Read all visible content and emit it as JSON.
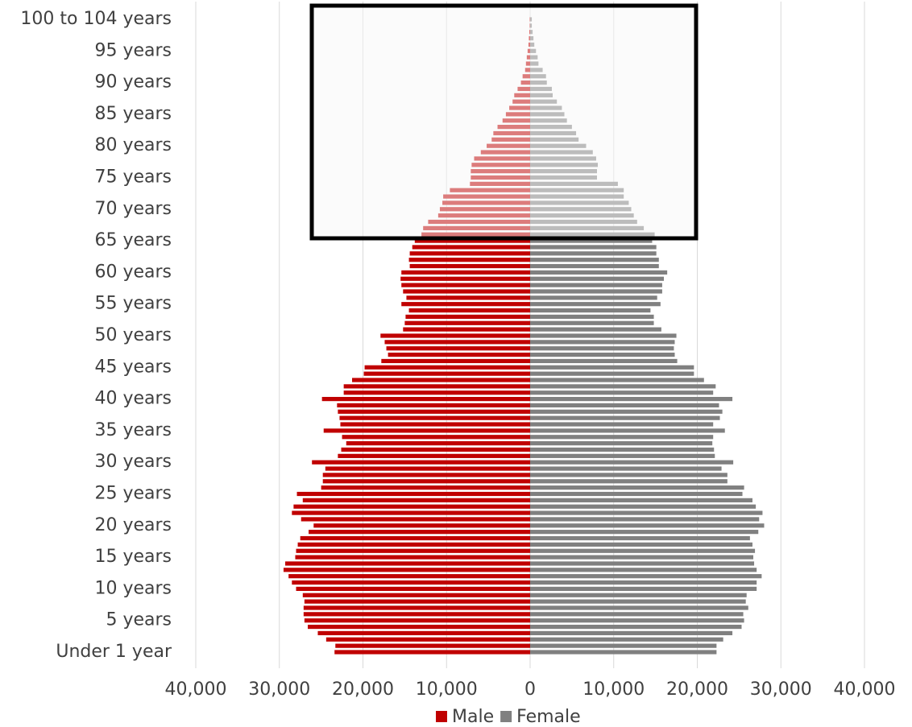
{
  "chart_data": {
    "type": "pyramid",
    "categories": [
      "Under 1 year",
      null,
      null,
      null,
      null,
      "5 years",
      null,
      null,
      null,
      null,
      "10 years",
      null,
      null,
      null,
      null,
      "15 years",
      null,
      null,
      null,
      null,
      "20 years",
      null,
      null,
      null,
      null,
      "25 years",
      null,
      null,
      null,
      null,
      "30 years",
      null,
      null,
      null,
      null,
      "35 years",
      null,
      null,
      null,
      null,
      "40 years",
      null,
      null,
      null,
      null,
      "45 years",
      null,
      null,
      null,
      null,
      "50 years",
      null,
      null,
      null,
      null,
      "55 years",
      null,
      null,
      null,
      null,
      "60 years",
      null,
      null,
      null,
      null,
      "65 years",
      null,
      null,
      null,
      null,
      "70 years",
      null,
      null,
      null,
      null,
      "75 years",
      null,
      null,
      null,
      null,
      "80 years",
      null,
      null,
      null,
      null,
      "85 years",
      null,
      null,
      null,
      null,
      "90 years",
      null,
      null,
      null,
      null,
      "95 years",
      null,
      null,
      null,
      null,
      "100 to 104 years"
    ],
    "series": [
      {
        "name": "Male",
        "color": "#c00000",
        "values": [
          -23400,
          -23300,
          -24400,
          -25400,
          -26600,
          -27000,
          -27100,
          -27100,
          -27000,
          -27200,
          -28000,
          -28500,
          -28900,
          -29500,
          -29300,
          -28100,
          -28000,
          -27800,
          -27500,
          -26500,
          -25900,
          -27400,
          -28500,
          -28300,
          -27200,
          -27900,
          -25000,
          -24800,
          -24800,
          -24500,
          -26100,
          -23000,
          -22600,
          -22000,
          -22500,
          -24700,
          -22700,
          -22800,
          -23000,
          -23100,
          -24900,
          -22300,
          -22300,
          -21300,
          -19900,
          -19800,
          -17800,
          -17000,
          -17200,
          -17400,
          -17900,
          -15200,
          -15000,
          -14900,
          -14500,
          -15400,
          -14800,
          -15200,
          -15400,
          -15500,
          -15400,
          -14400,
          -14500,
          -14400,
          -14100,
          -13800,
          -13000,
          -12800,
          -12200,
          -11000,
          -10800,
          -10500,
          -10400,
          -9600,
          -7200,
          -7100,
          -7100,
          -7000,
          -6700,
          -5900,
          -5200,
          -4600,
          -4400,
          -3900,
          -3300,
          -2900,
          -2500,
          -2100,
          -1900,
          -1500,
          -1100,
          -900,
          -600,
          -500,
          -400,
          -300,
          -200,
          -150,
          -100,
          -50,
          -50
        ]
      },
      {
        "name": "Female",
        "color": "#808080",
        "values": [
          22300,
          22300,
          23100,
          24200,
          25300,
          25600,
          25500,
          26100,
          25800,
          25900,
          27100,
          27100,
          27700,
          27100,
          26800,
          26700,
          26900,
          26600,
          26300,
          27300,
          28000,
          27400,
          27800,
          27000,
          26600,
          25400,
          25600,
          23600,
          23600,
          22900,
          24300,
          22100,
          22000,
          21800,
          21900,
          23300,
          21900,
          22700,
          23000,
          22600,
          24200,
          21900,
          22200,
          20800,
          19600,
          19600,
          17600,
          17300,
          17200,
          17300,
          17500,
          15700,
          14800,
          14800,
          14400,
          15600,
          15200,
          15800,
          15800,
          16000,
          16400,
          15400,
          15400,
          15100,
          15100,
          14600,
          14900,
          13600,
          12800,
          12400,
          12100,
          11800,
          11200,
          11200,
          10500,
          8000,
          8000,
          8100,
          7900,
          7500,
          6700,
          5800,
          5500,
          5000,
          4400,
          4100,
          3800,
          3200,
          2700,
          2600,
          2000,
          1900,
          1500,
          1000,
          900,
          700,
          500,
          400,
          300,
          200,
          200
        ]
      }
    ],
    "xlim": [
      -40000,
      40000
    ],
    "xticks": [
      {
        "value": -40000,
        "label": "40,000"
      },
      {
        "value": -30000,
        "label": "30,000"
      },
      {
        "value": -20000,
        "label": "20,000"
      },
      {
        "value": -10000,
        "label": "10,000"
      },
      0,
      {
        "value": 10000,
        "label": "10,000"
      },
      {
        "value": 20000,
        "label": "20,000"
      },
      {
        "value": 30000,
        "label": "30,000"
      },
      {
        "value": 40000,
        "label": "40,000"
      }
    ],
    "grid": true,
    "legend": "bottom"
  }
}
